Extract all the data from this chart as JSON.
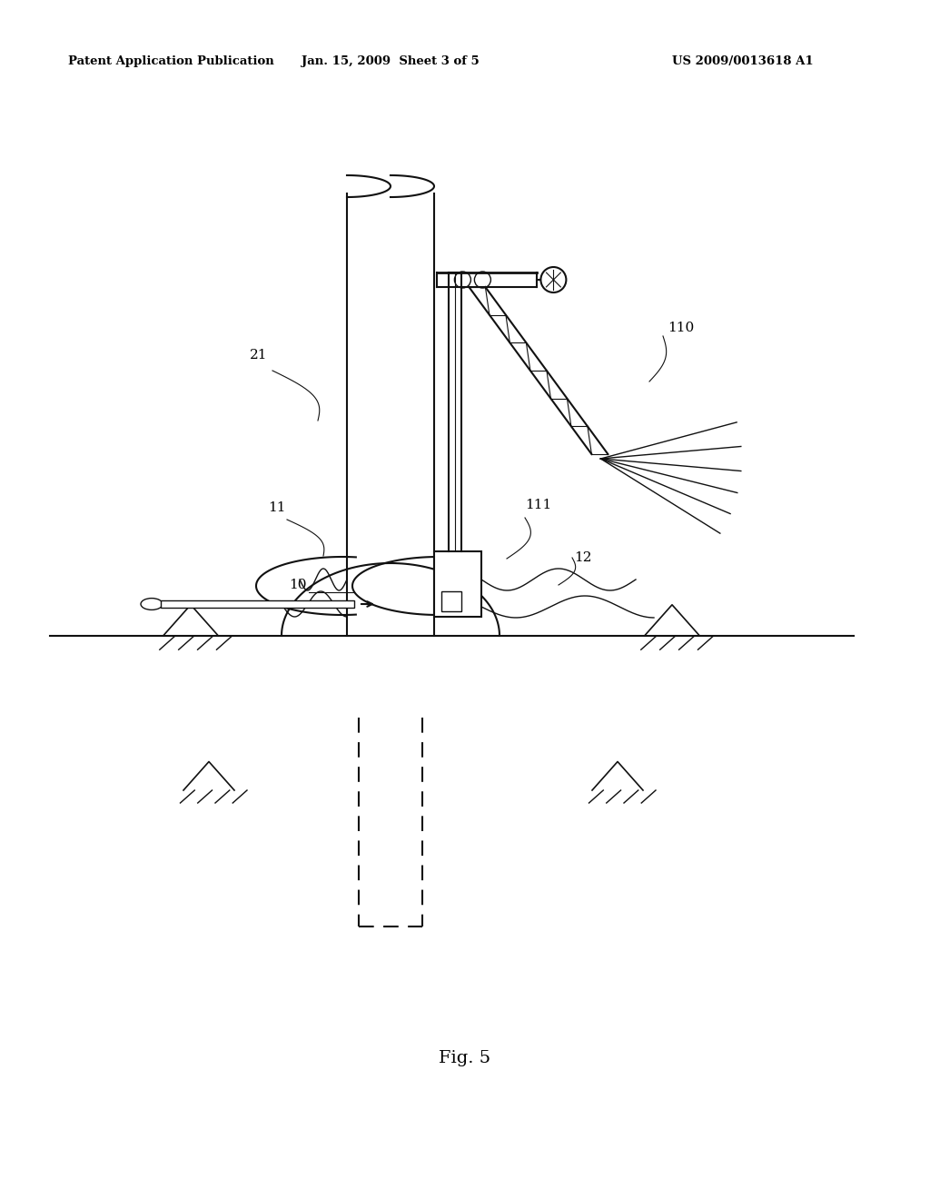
{
  "bg_color": "#ffffff",
  "line_color": "#111111",
  "header_left": "Patent Application Publication",
  "header_mid": "Jan. 15, 2009  Sheet 3 of 5",
  "header_right": "US 2009/0013618 A1",
  "fig_label": "Fig. 5"
}
